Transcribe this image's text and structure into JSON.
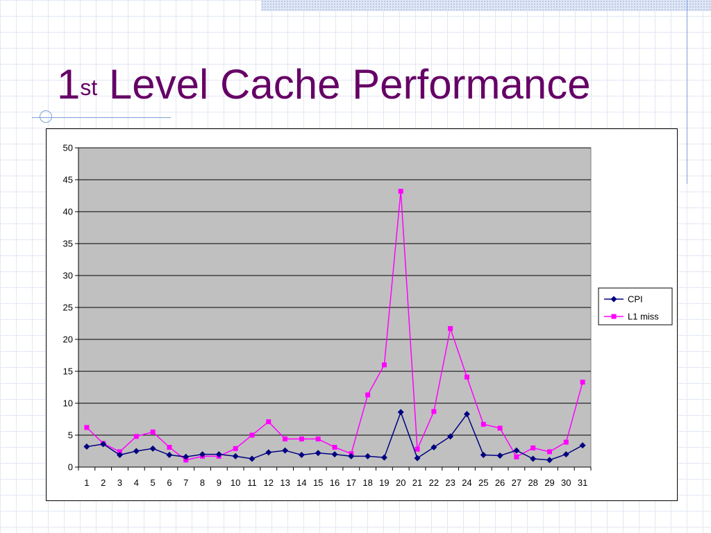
{
  "slide": {
    "title_main": "1",
    "title_sup": "st",
    "title_rest": " Level Cache Performance"
  },
  "colors": {
    "title": "#660066",
    "plot_bg": "#c0c0c0",
    "cpi": "#000080",
    "l1_miss": "#ff00ff"
  },
  "chart_data": {
    "type": "line",
    "title": "",
    "xlabel": "",
    "ylabel": "",
    "categories": [
      "1",
      "2",
      "3",
      "4",
      "5",
      "6",
      "7",
      "8",
      "9",
      "10",
      "11",
      "12",
      "13",
      "14",
      "15",
      "16",
      "17",
      "18",
      "19",
      "20",
      "21",
      "22",
      "23",
      "24",
      "25",
      "26",
      "27",
      "28",
      "29",
      "30",
      "31"
    ],
    "ylim": [
      0,
      50
    ],
    "yticks": [
      0,
      5,
      10,
      15,
      20,
      25,
      30,
      35,
      40,
      45,
      50
    ],
    "grid": true,
    "legend_position": "right",
    "series": [
      {
        "name": "CPI",
        "marker": "diamond",
        "values": [
          3.2,
          3.6,
          1.9,
          2.5,
          2.9,
          1.9,
          1.6,
          2.0,
          2.0,
          1.7,
          1.3,
          2.3,
          2.6,
          1.9,
          2.2,
          2.0,
          1.7,
          1.7,
          1.5,
          8.6,
          1.4,
          3.1,
          4.8,
          8.3,
          1.9,
          1.8,
          2.6,
          1.3,
          1.1,
          2.0,
          3.4
        ]
      },
      {
        "name": "L1 miss",
        "marker": "square",
        "values": [
          6.2,
          3.7,
          2.4,
          4.8,
          5.5,
          3.1,
          1.1,
          1.7,
          1.7,
          2.9,
          5.0,
          7.1,
          4.4,
          4.4,
          4.4,
          3.1,
          2.1,
          11.3,
          16.0,
          43.2,
          2.8,
          8.7,
          21.7,
          14.1,
          6.7,
          6.1,
          1.6,
          3.0,
          2.4,
          3.9,
          13.3
        ]
      }
    ]
  }
}
